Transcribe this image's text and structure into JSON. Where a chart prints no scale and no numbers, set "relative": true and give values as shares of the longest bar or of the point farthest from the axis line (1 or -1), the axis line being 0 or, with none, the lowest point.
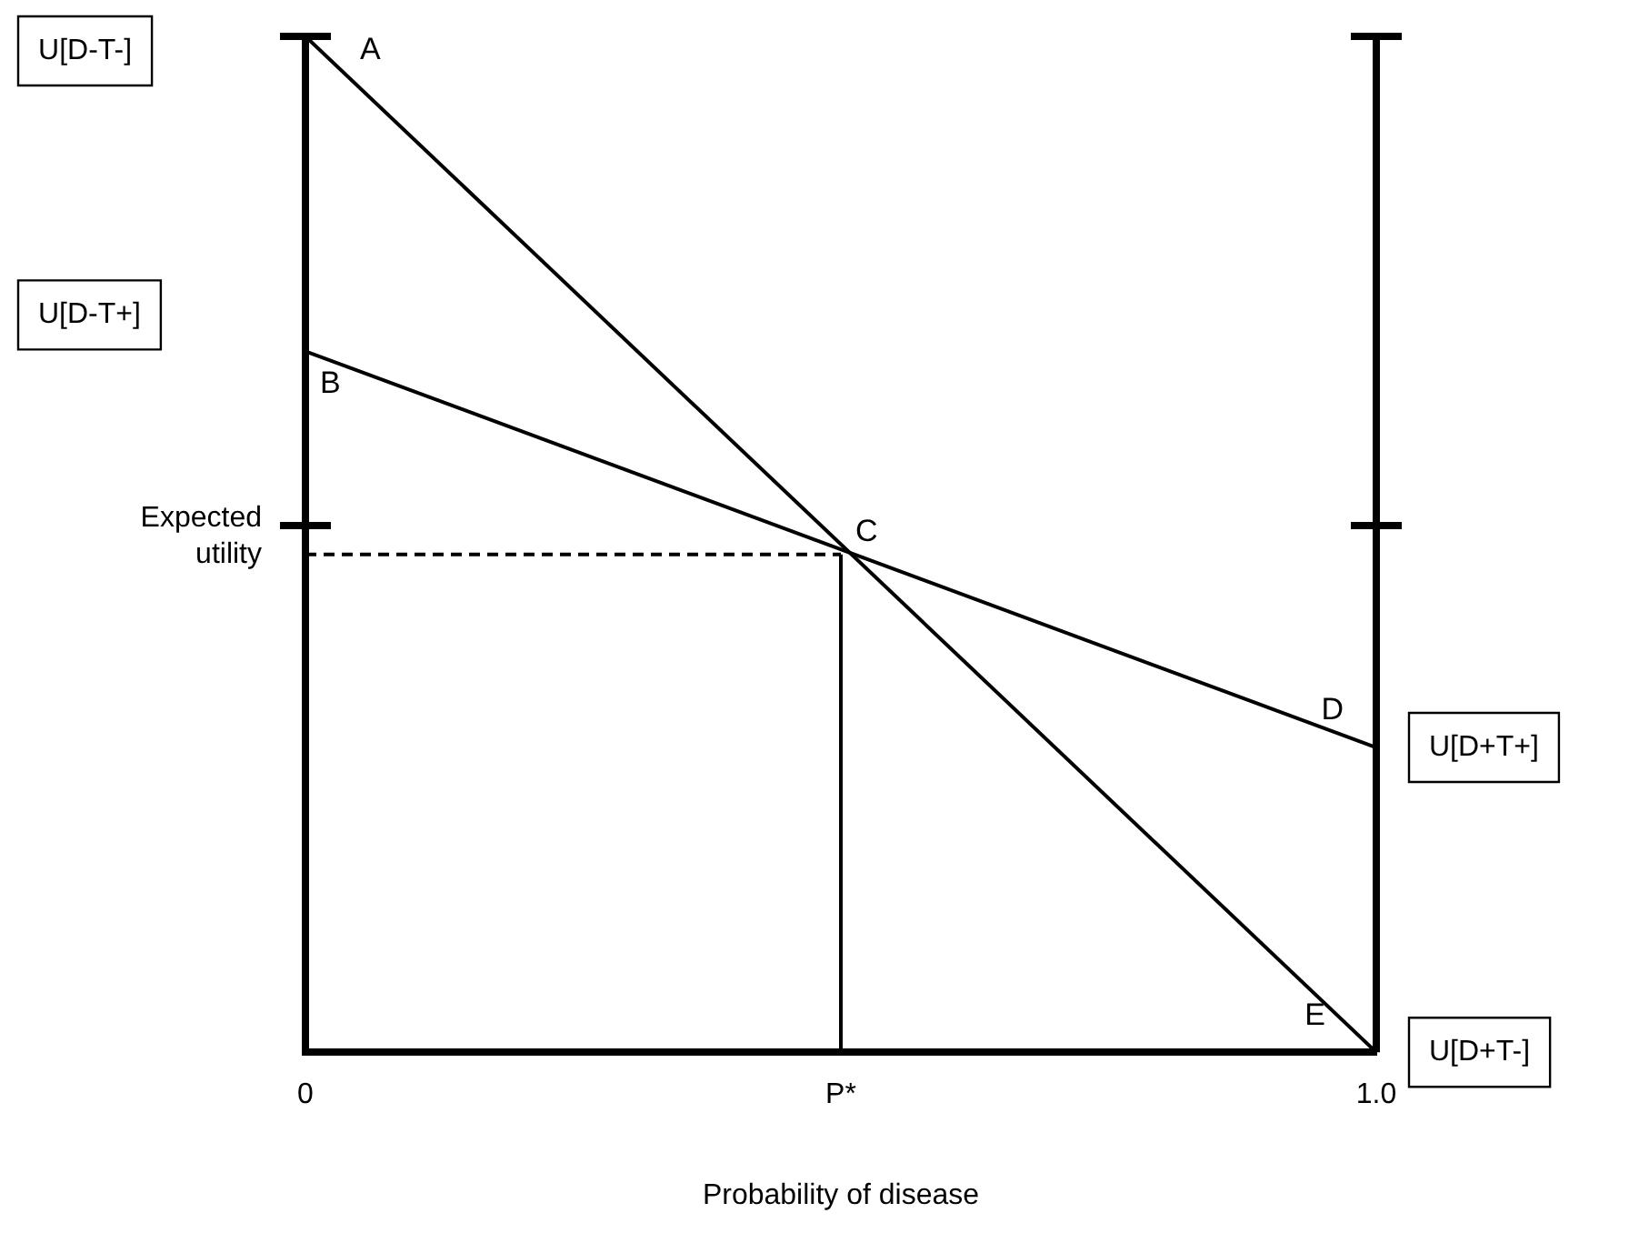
{
  "chart_data": {
    "type": "line",
    "relative": true,
    "xlabel": "Probability of disease",
    "ylabel": "Expected utility",
    "xlim": [
      0,
      1
    ],
    "xticks": [
      {
        "value": 0,
        "label": "0"
      },
      {
        "value": 0.5,
        "label": "P*"
      },
      {
        "value": 1,
        "label": "1.0"
      }
    ],
    "grid": false,
    "legend": false,
    "marker": "none",
    "series": [
      {
        "color": "#000000",
        "x": [
          0,
          1
        ],
        "values": [
          1,
          0
        ]
      },
      {
        "color": "#000000",
        "x": [
          0,
          1
        ],
        "values": [
          0.69,
          0.3
        ]
      },
      {
        "color": "#000000",
        "x": [
          0,
          0.5
        ],
        "values": [
          0.49,
          0.49
        ],
        "line_style": "dashed"
      },
      {
        "color": "#000000",
        "x": [
          0.5,
          0.5
        ],
        "values": [
          0,
          0.49
        ]
      }
    ],
    "annotations": [
      {
        "text": "A",
        "x": 0,
        "y": 1
      },
      {
        "text": "B",
        "x": 0,
        "y": 0.69
      },
      {
        "text": "C",
        "x": 0.5,
        "y": 0.49
      },
      {
        "text": "D",
        "x": 1,
        "y": 0.3
      },
      {
        "text": "E",
        "x": 1,
        "y": 0
      },
      "U[D-T-]",
      "U[D-T+]",
      "U[D+T+]",
      "U[D+T-]"
    ]
  }
}
